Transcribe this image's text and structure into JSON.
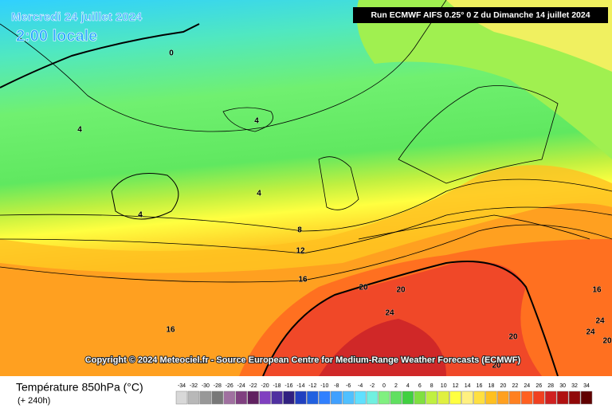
{
  "header": {
    "title": "Mercredi 24 juillet 2024",
    "subtitle": "2:00 locale",
    "run": "Run ECMWF AIFS 0.25° 0 Z du Dimanche 14 juillet 2024"
  },
  "map": {
    "contour_labels": [
      0,
      4,
      4,
      4,
      4,
      8,
      12,
      16,
      16,
      20,
      20,
      24,
      20,
      20,
      16,
      24,
      24,
      20
    ]
  },
  "copyright": "Copyright © 2024 Meteociel.fr - Source European Centre for Medium-Range Weather Forecasts (ECMWF)",
  "legend": {
    "title": "Température 850hPa (°C)",
    "note": "(+ 240h)",
    "scale": [
      -34,
      -32,
      -30,
      -28,
      -26,
      -24,
      -22,
      -20,
      -18,
      -16,
      -14,
      -12,
      -10,
      -8,
      -6,
      -4,
      -2,
      0,
      2,
      4,
      6,
      8,
      10,
      12,
      14,
      16,
      18,
      20,
      22,
      24,
      26,
      28,
      30,
      32,
      34
    ],
    "colors": [
      "#d8d8d8",
      "#b8b8b8",
      "#989898",
      "#787878",
      "#a070a0",
      "#804080",
      "#602060",
      "#8040c0",
      "#5030a0",
      "#302080",
      "#2040c0",
      "#2060e0",
      "#3080ff",
      "#40a0ff",
      "#50c0ff",
      "#60e0ff",
      "#70f0e0",
      "#80f080",
      "#60e060",
      "#40d040",
      "#80e040",
      "#c0f040",
      "#e0f040",
      "#ffff40",
      "#fff080",
      "#ffe040",
      "#ffc020",
      "#ffa020",
      "#ff8020",
      "#ff6020",
      "#f04020",
      "#d02020",
      "#b01010",
      "#900808",
      "#600000"
    ]
  }
}
